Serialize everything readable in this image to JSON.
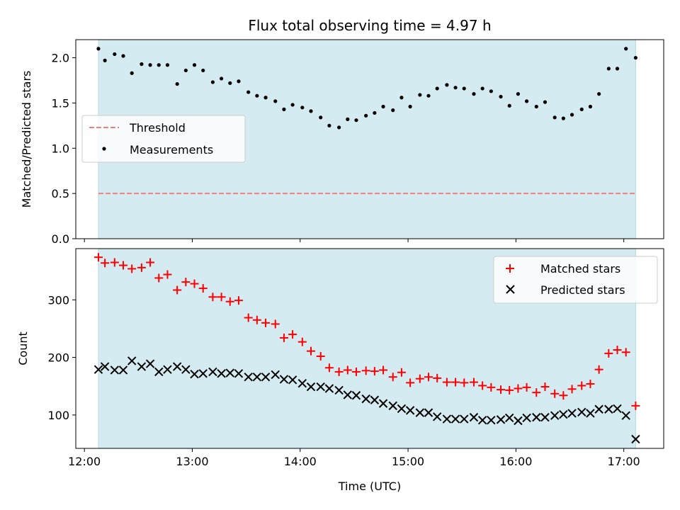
{
  "chart_data": {
    "title": "Flux total observing time = 4.97 h",
    "xlabel": "Time (UTC)",
    "x_unit": "hours UTC",
    "xlim": [
      11.92,
      17.37
    ],
    "xticks": [
      {
        "value": 12,
        "label": "12:00"
      },
      {
        "value": 13,
        "label": "13:00"
      },
      {
        "value": 14,
        "label": "14:00"
      },
      {
        "value": 15,
        "label": "15:00"
      },
      {
        "value": 16,
        "label": "16:00"
      },
      {
        "value": 17,
        "label": "17:00"
      }
    ],
    "observing_span": [
      12.13,
      17.11
    ],
    "span_color": "#d4ebf1",
    "panels": [
      {
        "type": "scatter",
        "ylabel": "Matched/Predicted stars",
        "ylim": [
          0,
          2.2
        ],
        "yticks": [
          "0.0",
          "0.5",
          "1.0",
          "1.5",
          "2.0"
        ],
        "legend_position": "center-left",
        "threshold": {
          "name": "Threshold",
          "value": 0.5,
          "x_range": [
            12.13,
            17.11
          ],
          "color": "#f08080"
        },
        "series": [
          {
            "name": "Measurements",
            "marker": "dot",
            "color": "#000000",
            "points": [
              [
                12.13,
                2.1
              ],
              [
                12.19,
                1.97
              ],
              [
                12.28,
                2.04
              ],
              [
                12.36,
                2.02
              ],
              [
                12.44,
                1.83
              ],
              [
                12.53,
                1.93
              ],
              [
                12.61,
                1.92
              ],
              [
                12.69,
                1.92
              ],
              [
                12.77,
                1.92
              ],
              [
                12.86,
                1.71
              ],
              [
                12.94,
                1.86
              ],
              [
                13.02,
                1.92
              ],
              [
                13.1,
                1.86
              ],
              [
                13.19,
                1.73
              ],
              [
                13.27,
                1.77
              ],
              [
                13.35,
                1.72
              ],
              [
                13.43,
                1.74
              ],
              [
                13.52,
                1.62
              ],
              [
                13.6,
                1.58
              ],
              [
                13.68,
                1.56
              ],
              [
                13.77,
                1.52
              ],
              [
                13.85,
                1.43
              ],
              [
                13.93,
                1.48
              ],
              [
                14.02,
                1.45
              ],
              [
                14.1,
                1.41
              ],
              [
                14.19,
                1.34
              ],
              [
                14.27,
                1.25
              ],
              [
                14.36,
                1.23
              ],
              [
                14.44,
                1.32
              ],
              [
                14.52,
                1.31
              ],
              [
                14.61,
                1.36
              ],
              [
                14.69,
                1.39
              ],
              [
                14.77,
                1.46
              ],
              [
                14.86,
                1.42
              ],
              [
                14.94,
                1.56
              ],
              [
                15.02,
                1.46
              ],
              [
                15.11,
                1.59
              ],
              [
                15.19,
                1.58
              ],
              [
                15.27,
                1.66
              ],
              [
                15.36,
                1.7
              ],
              [
                15.44,
                1.67
              ],
              [
                15.52,
                1.66
              ],
              [
                15.61,
                1.6
              ],
              [
                15.69,
                1.66
              ],
              [
                15.77,
                1.63
              ],
              [
                15.86,
                1.57
              ],
              [
                15.94,
                1.47
              ],
              [
                16.02,
                1.6
              ],
              [
                16.1,
                1.52
              ],
              [
                16.19,
                1.46
              ],
              [
                16.27,
                1.51
              ],
              [
                16.36,
                1.34
              ],
              [
                16.44,
                1.33
              ],
              [
                16.52,
                1.37
              ],
              [
                16.61,
                1.43
              ],
              [
                16.69,
                1.46
              ],
              [
                16.77,
                1.6
              ],
              [
                16.86,
                1.88
              ],
              [
                16.94,
                1.88
              ],
              [
                17.02,
                2.1
              ],
              [
                17.11,
                2.0
              ]
            ]
          }
        ]
      },
      {
        "type": "scatter",
        "ylabel": "Count",
        "ylim": [
          42,
          389
        ],
        "yticks": [
          "100",
          "200",
          "300"
        ],
        "legend_position": "upper-right",
        "series": [
          {
            "name": "Matched stars",
            "marker": "plus",
            "color": "#ff0000",
            "points": [
              [
                12.13,
                374
              ],
              [
                12.19,
                364
              ],
              [
                12.28,
                365
              ],
              [
                12.36,
                360
              ],
              [
                12.44,
                354
              ],
              [
                12.53,
                356
              ],
              [
                12.61,
                365
              ],
              [
                12.69,
                338
              ],
              [
                12.77,
                344
              ],
              [
                12.86,
                317
              ],
              [
                12.94,
                331
              ],
              [
                13.02,
                328
              ],
              [
                13.1,
                320
              ],
              [
                13.19,
                305
              ],
              [
                13.27,
                305
              ],
              [
                13.35,
                297
              ],
              [
                13.43,
                299
              ],
              [
                13.52,
                269
              ],
              [
                13.6,
                265
              ],
              [
                13.68,
                260
              ],
              [
                13.77,
                258
              ],
              [
                13.85,
                234
              ],
              [
                13.93,
                240
              ],
              [
                14.02,
                227
              ],
              [
                14.1,
                211
              ],
              [
                14.19,
                202
              ],
              [
                14.27,
                182
              ],
              [
                14.36,
                175
              ],
              [
                14.44,
                178
              ],
              [
                14.52,
                175
              ],
              [
                14.61,
                177
              ],
              [
                14.69,
                176
              ],
              [
                14.77,
                178
              ],
              [
                14.86,
                166
              ],
              [
                14.94,
                174
              ],
              [
                15.02,
                156
              ],
              [
                15.11,
                163
              ],
              [
                15.19,
                166
              ],
              [
                15.27,
                164
              ],
              [
                15.36,
                157
              ],
              [
                15.44,
                157
              ],
              [
                15.52,
                156
              ],
              [
                15.61,
                157
              ],
              [
                15.69,
                151
              ],
              [
                15.77,
                148
              ],
              [
                15.86,
                144
              ],
              [
                15.94,
                143
              ],
              [
                16.02,
                146
              ],
              [
                16.1,
                148
              ],
              [
                16.19,
                139
              ],
              [
                16.27,
                149
              ],
              [
                16.36,
                137
              ],
              [
                16.44,
                134
              ],
              [
                16.52,
                145
              ],
              [
                16.61,
                151
              ],
              [
                16.69,
                154
              ],
              [
                16.77,
                179
              ],
              [
                16.86,
                207
              ],
              [
                16.94,
                213
              ],
              [
                17.02,
                209
              ],
              [
                17.11,
                116
              ]
            ]
          },
          {
            "name": "Predicted stars",
            "marker": "x",
            "color": "#000000",
            "points": [
              [
                12.13,
                179
              ],
              [
                12.19,
                184
              ],
              [
                12.28,
                178
              ],
              [
                12.36,
                178
              ],
              [
                12.44,
                194
              ],
              [
                12.53,
                184
              ],
              [
                12.61,
                189
              ],
              [
                12.69,
                175
              ],
              [
                12.77,
                179
              ],
              [
                12.86,
                184
              ],
              [
                12.94,
                179
              ],
              [
                13.02,
                171
              ],
              [
                13.1,
                172
              ],
              [
                13.19,
                175
              ],
              [
                13.27,
                172
              ],
              [
                13.35,
                173
              ],
              [
                13.43,
                172
              ],
              [
                13.52,
                166
              ],
              [
                13.6,
                166
              ],
              [
                13.68,
                166
              ],
              [
                13.77,
                170
              ],
              [
                13.85,
                162
              ],
              [
                13.93,
                161
              ],
              [
                14.02,
                155
              ],
              [
                14.1,
                149
              ],
              [
                14.19,
                149
              ],
              [
                14.27,
                146
              ],
              [
                14.36,
                143
              ],
              [
                14.44,
                135
              ],
              [
                14.52,
                134
              ],
              [
                14.61,
                128
              ],
              [
                14.69,
                126
              ],
              [
                14.77,
                120
              ],
              [
                14.86,
                116
              ],
              [
                14.94,
                111
              ],
              [
                15.02,
                108
              ],
              [
                15.11,
                104
              ],
              [
                15.19,
                104
              ],
              [
                15.27,
                97
              ],
              [
                15.36,
                93
              ],
              [
                15.44,
                93
              ],
              [
                15.52,
                93
              ],
              [
                15.61,
                96
              ],
              [
                15.69,
                91
              ],
              [
                15.77,
                91
              ],
              [
                15.86,
                92
              ],
              [
                15.94,
                95
              ],
              [
                16.02,
                90
              ],
              [
                16.1,
                95
              ],
              [
                16.19,
                96
              ],
              [
                16.27,
                96
              ],
              [
                16.36,
                99
              ],
              [
                16.44,
                101
              ],
              [
                16.52,
                103
              ],
              [
                16.61,
                105
              ],
              [
                16.69,
                103
              ],
              [
                16.77,
                110
              ],
              [
                16.86,
                110
              ],
              [
                16.94,
                111
              ],
              [
                17.02,
                99
              ],
              [
                17.11,
                58
              ]
            ]
          }
        ]
      }
    ]
  }
}
